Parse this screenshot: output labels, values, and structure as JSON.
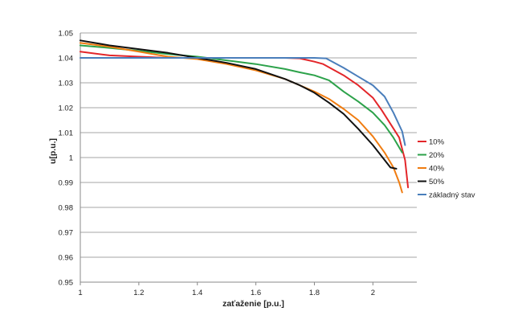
{
  "chart_data": {
    "type": "line",
    "xlabel": "zaťaženie [p.u.]",
    "ylabel": "u[p.u.]",
    "xlim": [
      1,
      2.15
    ],
    "ylim": [
      0.95,
      1.05
    ],
    "x_ticks": [
      1,
      1.2,
      1.4,
      1.6,
      1.8,
      2
    ],
    "x_tick_labels": [
      "1",
      "1.2",
      "1.4",
      "1.6",
      "1.8",
      "2"
    ],
    "y_ticks": [
      0.95,
      0.96,
      0.97,
      0.98,
      0.99,
      1.0,
      1.01,
      1.02,
      1.03,
      1.04,
      1.05
    ],
    "y_tick_labels": [
      "0.95",
      "0.96",
      "0.97",
      "0.98",
      "0.99",
      "1",
      "1.01",
      "1.02",
      "1.03",
      "1.04",
      "1.05"
    ],
    "grid": "horizontal",
    "legend_position": "right",
    "series": [
      {
        "name": "10%",
        "color": "#e3262a",
        "x": [
          1.0,
          1.1,
          1.2,
          1.3,
          1.4,
          1.5,
          1.6,
          1.7,
          1.75,
          1.8,
          1.83,
          1.9,
          1.95,
          2.0,
          2.03,
          2.06,
          2.09,
          2.11,
          2.12
        ],
        "y": [
          1.0425,
          1.041,
          1.0405,
          1.04,
          1.04,
          1.04,
          1.04,
          1.04,
          1.0398,
          1.0385,
          1.0375,
          1.033,
          1.029,
          1.024,
          1.019,
          1.0135,
          1.008,
          0.999,
          0.988
        ]
      },
      {
        "name": "20%",
        "color": "#2ca24a",
        "x": [
          1.0,
          1.1,
          1.2,
          1.3,
          1.4,
          1.5,
          1.6,
          1.7,
          1.75,
          1.8,
          1.85,
          1.9,
          1.95,
          2.0,
          2.04,
          2.07,
          2.1
        ],
        "y": [
          1.045,
          1.044,
          1.0428,
          1.0415,
          1.0405,
          1.039,
          1.0375,
          1.0355,
          1.0342,
          1.033,
          1.031,
          1.0265,
          1.0225,
          1.018,
          1.013,
          1.008,
          1.002
        ]
      },
      {
        "name": "40%",
        "color": "#f07c10",
        "x": [
          1.0,
          1.1,
          1.2,
          1.3,
          1.4,
          1.5,
          1.6,
          1.7,
          1.8,
          1.85,
          1.9,
          1.95,
          2.0,
          2.04,
          2.07,
          2.09,
          2.1
        ],
        "y": [
          1.046,
          1.0445,
          1.0425,
          1.0405,
          1.0395,
          1.0375,
          1.035,
          1.0315,
          1.0265,
          1.0235,
          1.0195,
          1.015,
          1.0085,
          1.002,
          0.996,
          0.99,
          0.986
        ]
      },
      {
        "name": "50%",
        "color": "#111111",
        "x": [
          1.0,
          1.1,
          1.2,
          1.3,
          1.4,
          1.5,
          1.6,
          1.7,
          1.75,
          1.8,
          1.85,
          1.9,
          1.95,
          2.0,
          2.03,
          2.06,
          2.08
        ],
        "y": [
          1.047,
          1.045,
          1.0435,
          1.042,
          1.04,
          1.038,
          1.0355,
          1.0315,
          1.029,
          1.026,
          1.022,
          1.0175,
          1.0115,
          1.005,
          1.0005,
          0.996,
          0.9955
        ]
      },
      {
        "name": "základný stav",
        "color": "#4a7ebb",
        "x": [
          1.0,
          1.2,
          1.4,
          1.6,
          1.7,
          1.8,
          1.84,
          1.9,
          1.95,
          2.0,
          2.04,
          2.07,
          2.1,
          2.11
        ],
        "y": [
          1.04,
          1.04,
          1.04,
          1.04,
          1.04,
          1.04,
          1.0398,
          1.036,
          1.0325,
          1.029,
          1.0245,
          1.018,
          1.0105,
          1.005
        ]
      }
    ]
  }
}
